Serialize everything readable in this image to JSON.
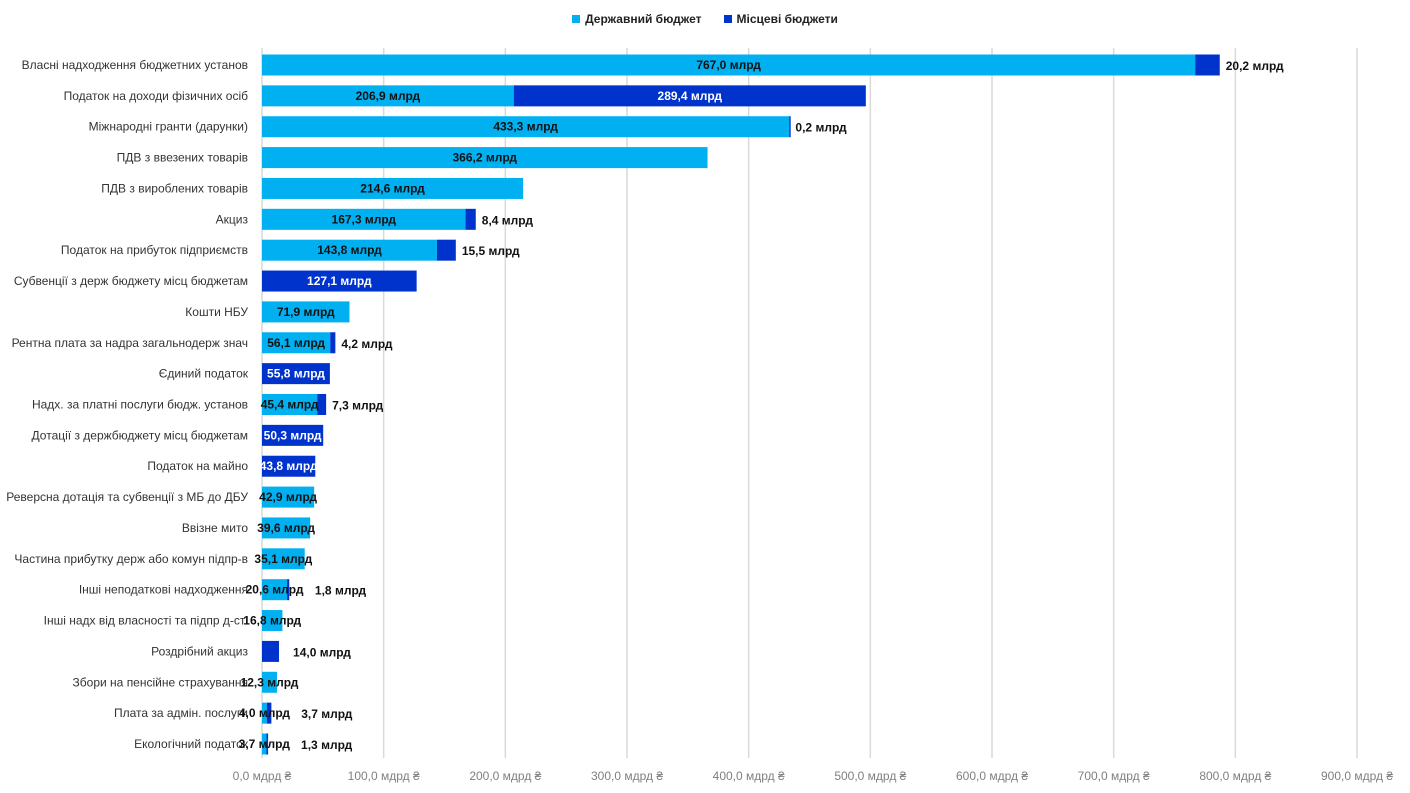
{
  "chart_data": {
    "type": "bar",
    "orientation": "horizontal",
    "stacked": true,
    "title": "",
    "xlabel": "",
    "ylabel": "",
    "xlim": [
      0,
      900
    ],
    "x_ticks": [
      "0,0 мдрд ₴",
      "100,0 мдрд ₴",
      "200,0 мдрд ₴",
      "300,0 мдрд ₴",
      "400,0 мдрд ₴",
      "500,0 мдрд ₴",
      "600,0 мдрд ₴",
      "700,0 мдрд ₴",
      "800,0 мдрд ₴",
      "900,0 мдрд ₴"
    ],
    "grid": true,
    "legend_position": "top",
    "value_unit_label": "млрд",
    "categories": [
      "Власні надходження бюджетних установ",
      "Податок на доходи фізичних осіб",
      "Міжнародні гранти (дарунки)",
      "ПДВ з ввезених товарів",
      "ПДВ з вироблених товарів",
      "Акциз",
      "Податок на прибуток підприємств",
      "Субвенції з держ бюджету місц бюджетам",
      "Кошти НБУ",
      "Рентна плата за надра загальнодерж знач",
      "Єдиний податок",
      "Надх. за платні послуги бюдж. установ",
      "Дотації з держбюджету місц бюджетам",
      "Податок на майно",
      "Реверсна дотація та субвенції з МБ до ДБУ",
      "Ввізне мито",
      "Частина прибутку держ або комун підпр-в",
      "Інші неподаткові надходження",
      "Інші надх від власності та підпр д-сті",
      "Роздрібний акциз",
      "Збори на пенсійне страхування",
      "Плата за адмін. послуги",
      "Екологічний податок"
    ],
    "series": [
      {
        "name": "Державний бюджет",
        "color": "#00B0F0",
        "values": [
          767.0,
          206.9,
          433.3,
          366.2,
          214.6,
          167.3,
          143.8,
          0,
          71.9,
          56.1,
          0,
          45.4,
          0,
          0,
          42.9,
          39.6,
          35.1,
          20.6,
          16.8,
          0,
          12.3,
          4.0,
          3.7
        ]
      },
      {
        "name": "Місцеві бюджети",
        "color": "#0033CC",
        "values": [
          20.2,
          289.4,
          0.2,
          0,
          0,
          8.4,
          15.5,
          127.1,
          0,
          4.2,
          55.8,
          7.3,
          50.3,
          43.8,
          0,
          0,
          0,
          1.8,
          0,
          14.0,
          0,
          3.7,
          1.3
        ]
      }
    ]
  }
}
